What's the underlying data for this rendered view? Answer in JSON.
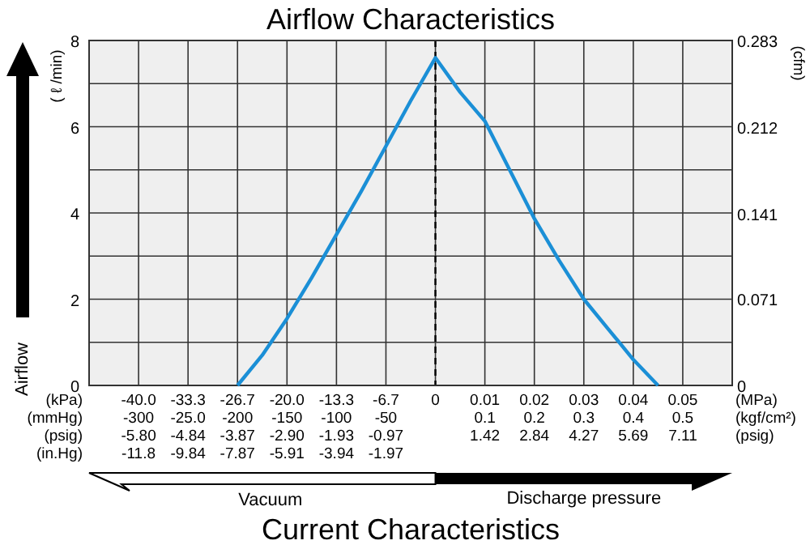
{
  "chart_data": {
    "type": "line",
    "title": "Airflow Characteristics",
    "ylabel": "( ℓ /min)",
    "y2label": "(cfm)",
    "categories": [
      null,
      null,
      "-40.0\n-300\n-5.80\n-11.8",
      null,
      "-33.3\n-25.0\n-4.84\n-9.84",
      null,
      "-26.7\n-200\n-3.87\n-7.87",
      null,
      "-20.0\n-150\n-2.90\n-5.91",
      null,
      "-13.3\n-100\n-1.93\n-3.94",
      null,
      "-6.7\n-50\n-0.97\n-1.97",
      null,
      "0",
      null,
      "0.01\n0.1\n1.42",
      null,
      "0.02\n0.2\n2.84",
      null,
      "0.03\n0.3\n4.27",
      null,
      "0.04\n0.4\n5.69",
      null,
      "0.05\n0.5\n7.11",
      null,
      null
    ],
    "series": [
      {
        "color": "#1b8fd6",
        "values": [
          null,
          null,
          null,
          null,
          null,
          null,
          0,
          0.7,
          1.55,
          2.5,
          3.5,
          4.5,
          5.55,
          6.6,
          7.6,
          6.8,
          6.13,
          5,
          3.87,
          2.9,
          2,
          1.3,
          0.6,
          0,
          null,
          null,
          null
        ]
      }
    ],
    "ylim": [
      0,
      8
    ],
    "yticks": [
      0,
      2,
      4,
      6,
      8
    ],
    "y2lim": [
      0,
      0.283
    ],
    "y2ticks": [
      0,
      0.071,
      0.141,
      0.212,
      0.283
    ],
    "grid": true,
    "marker": "none",
    "line_style": "solid",
    "ref_lines": [
      {
        "axis": "x",
        "value": "0",
        "line_style": "dashed",
        "color": "#000000"
      }
    ],
    "annotations": [
      "(kPa)\n(mmHg)\n(psig)\n(in.Hg)",
      "(MPa)\n(kgf/cm²)\n(psig)",
      "Airflow",
      "Vacuum",
      "Discharge pressure",
      "Current Characteristics"
    ]
  }
}
